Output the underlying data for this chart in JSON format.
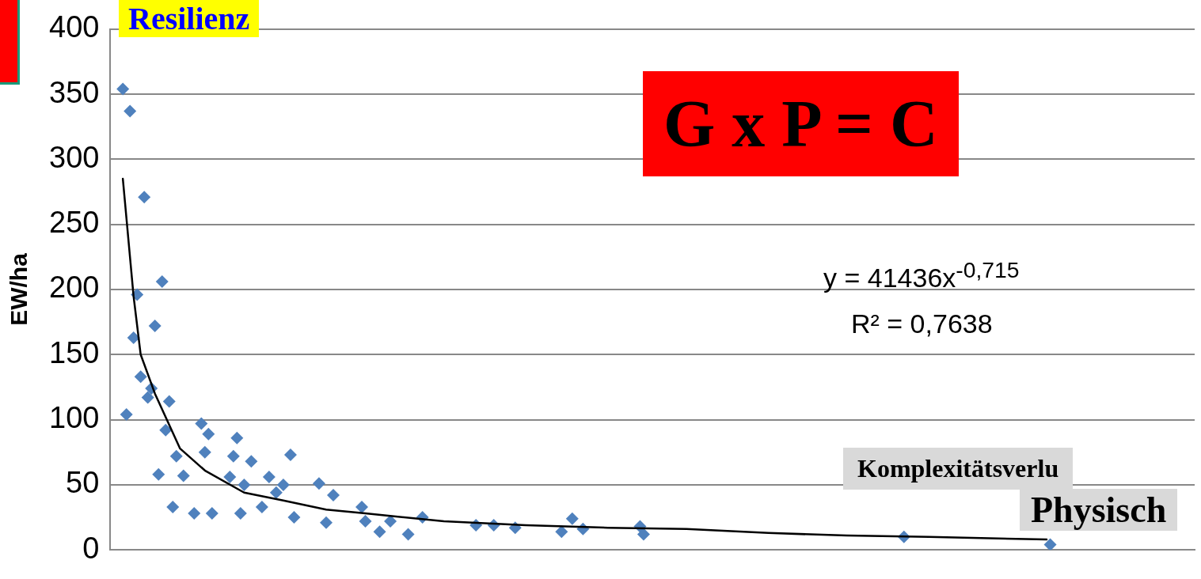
{
  "chart_data": {
    "type": "scatter",
    "ylabel": "EW/ha",
    "categories": [
      null,
      null,
      null,
      null,
      null,
      null,
      null,
      null,
      null,
      null,
      null,
      null,
      null,
      null,
      null,
      null,
      null,
      null,
      null,
      null,
      null,
      null,
      null,
      null,
      null,
      null,
      null,
      null,
      null,
      null,
      null,
      null,
      null,
      null,
      null,
      null,
      null,
      null,
      null,
      null,
      null,
      null,
      null,
      null,
      null,
      null,
      null,
      null,
      null,
      null,
      null,
      null,
      null,
      null,
      null,
      null,
      null,
      null,
      null,
      null,
      null,
      null,
      null,
      null,
      null,
      null,
      null,
      null,
      null,
      null,
      null,
      null,
      null,
      null,
      null,
      null,
      null,
      null,
      null,
      null,
      null,
      null,
      null,
      null,
      null,
      null,
      null,
      null,
      null,
      null,
      null,
      null,
      null,
      null,
      null,
      null,
      null,
      null,
      null,
      null,
      null,
      null,
      null,
      null,
      null,
      null,
      null,
      null,
      null,
      null,
      null,
      null,
      null,
      null,
      null,
      null,
      null,
      null,
      null,
      null,
      null,
      null,
      null,
      null,
      null,
      null,
      null,
      null,
      null,
      null,
      null,
      null,
      null,
      null,
      null,
      null,
      null,
      null,
      null,
      null,
      null,
      null,
      null,
      null,
      null,
      null,
      null,
      null,
      null,
      null,
      null,
      null,
      null,
      null,
      null,
      null,
      null,
      null,
      null,
      null,
      null,
      null,
      null,
      null,
      null,
      null,
      null,
      null,
      null,
      null,
      null,
      null,
      null,
      null,
      null,
      null,
      null,
      null,
      null,
      null,
      null,
      null,
      null,
      null,
      null,
      null,
      null,
      null,
      null,
      null,
      null,
      null,
      null,
      null,
      null,
      null,
      null,
      null,
      null,
      null,
      null,
      null,
      null,
      null,
      null,
      null,
      null,
      null,
      null,
      null,
      null,
      null,
      null,
      null,
      null,
      null,
      null,
      null,
      null,
      null,
      null,
      null,
      null,
      null,
      null,
      null,
      null,
      null,
      null,
      null,
      null,
      null,
      null,
      null,
      null,
      null,
      null,
      null,
      null,
      null,
      null,
      null,
      null,
      null,
      null,
      null,
      null,
      null,
      null,
      null,
      null,
      null,
      null,
      null,
      null,
      null,
      null,
      null,
      null,
      null,
      null,
      null,
      null,
      null,
      null,
      null,
      null,
      null,
      null,
      null,
      null,
      null,
      null,
      null,
      null,
      null,
      null,
      null,
      null,
      null,
      null,
      null,
      null,
      null,
      null,
      null,
      null,
      null,
      null,
      null,
      null,
      null,
      null,
      null,
      null,
      null,
      null,
      null,
      null,
      null,
      null,
      null,
      null,
      null
    ],
    "ylim": [
      0,
      400
    ],
    "yticks": [
      0,
      50,
      100,
      150,
      200,
      250,
      300,
      350,
      400
    ],
    "tick_labels": "y",
    "grid": "y",
    "legend": false,
    "marker": "diamond",
    "annotations": [
      "Resilienz",
      "G x P = C",
      "y = 41436x$^{-0,715}$",
      "R² = 0,7638",
      "Komplexitätsverlu",
      "Physisch"
    ],
    "series": [
      {
        "color": "#4f81bd",
        "values": [
          null,
          null,
          null,
          354,
          104,
          337,
          163,
          196,
          133,
          271,
          117,
          124,
          172,
          58,
          206,
          92,
          114,
          33,
          72,
          null,
          57,
          null,
          null,
          28,
          null,
          97,
          75,
          89,
          28,
          null,
          null,
          null,
          null,
          56,
          72,
          86,
          28,
          50,
          null,
          68,
          null,
          null,
          33,
          null,
          56,
          null,
          44,
          null,
          50,
          null,
          73,
          25,
          null,
          null,
          null,
          null,
          null,
          null,
          51,
          null,
          21,
          null,
          42,
          null,
          null,
          null,
          null,
          null,
          null,
          null,
          33,
          22,
          null,
          null,
          null,
          14,
          null,
          null,
          22,
          null,
          null,
          null,
          null,
          12,
          null,
          null,
          null,
          25,
          null,
          null,
          null,
          null,
          null,
          null,
          null,
          null,
          null,
          null,
          null,
          null,
          null,
          null,
          19,
          null,
          null,
          null,
          null,
          19,
          null,
          null,
          null,
          null,
          null,
          17,
          null,
          null,
          null,
          null,
          null,
          null,
          null,
          null,
          null,
          null,
          null,
          null,
          14,
          null,
          null,
          24,
          null,
          null,
          16,
          null,
          null,
          null,
          null,
          null,
          null,
          null,
          null,
          null,
          null,
          null,
          null,
          null,
          null,
          null,
          18,
          12,
          null,
          null,
          null,
          null,
          null,
          null,
          null,
          null,
          null,
          null,
          null,
          null,
          null,
          null,
          null,
          null,
          null,
          null,
          null,
          null,
          null,
          null,
          null,
          null,
          null,
          null,
          null,
          null,
          null,
          null,
          null,
          null,
          null,
          null,
          null,
          null,
          null,
          null,
          null,
          null,
          null,
          null,
          null,
          null,
          null,
          null,
          null,
          null,
          null,
          null,
          null,
          null,
          null,
          null,
          null,
          null,
          null,
          null,
          null,
          null,
          null,
          null,
          null,
          null,
          null,
          null,
          null,
          null,
          null,
          null,
          null,
          null,
          10,
          null,
          null,
          null,
          null,
          null,
          null,
          null,
          null,
          null,
          null,
          null,
          null,
          null,
          null,
          null,
          null,
          null,
          null,
          null,
          null,
          null,
          null,
          null,
          null,
          null,
          null,
          null,
          null,
          null,
          null,
          null,
          null,
          null,
          null,
          null,
          null,
          null,
          null,
          null,
          null,
          4,
          null,
          null,
          null,
          null,
          null,
          null,
          null,
          null,
          null,
          null,
          null,
          null,
          null,
          null,
          null,
          null,
          null,
          null,
          null,
          null,
          null,
          null,
          null,
          null,
          null,
          null,
          null,
          null,
          null,
          null,
          null,
          null,
          null,
          null,
          null,
          null,
          null,
          null,
          null,
          null
        ]
      },
      {
        "type": "line",
        "color": "#000000",
        "marker": "none",
        "line_style": "solid",
        "values": [
          null,
          null,
          null,
          285,
          null,
          null,
          195,
          null,
          150,
          null,
          null,
          null,
          120,
          null,
          null,
          null,
          null,
          null,
          null,
          78,
          null,
          null,
          null,
          null,
          null,
          null,
          61,
          null,
          null,
          null,
          null,
          null,
          null,
          null,
          null,
          null,
          null,
          44,
          null,
          null,
          null,
          null,
          null,
          null,
          null,
          null,
          null,
          null,
          38,
          null,
          null,
          null,
          null,
          null,
          null,
          null,
          null,
          null,
          null,
          null,
          31,
          null,
          null,
          null,
          null,
          null,
          null,
          null,
          null,
          null,
          null,
          28,
          null,
          null,
          null,
          null,
          null,
          null,
          null,
          null,
          null,
          null,
          null,
          null,
          null,
          null,
          null,
          null,
          null,
          null,
          null,
          null,
          null,
          22,
          null,
          null,
          null,
          null,
          null,
          null,
          null,
          null,
          null,
          null,
          null,
          null,
          null,
          null,
          null,
          null,
          null,
          null,
          null,
          null,
          null,
          null,
          19,
          null,
          null,
          null,
          null,
          null,
          null,
          null,
          null,
          null,
          null,
          null,
          null,
          null,
          null,
          null,
          null,
          null,
          null,
          null,
          null,
          null,
          null,
          17,
          null,
          null,
          null,
          null,
          null,
          null,
          null,
          null,
          null,
          null,
          null,
          null,
          null,
          null,
          null,
          null,
          null,
          null,
          null,
          null,
          null,
          16,
          null,
          null,
          null,
          null,
          null,
          null,
          null,
          null,
          null,
          null,
          null,
          null,
          null,
          null,
          null,
          null,
          null,
          null,
          null,
          null,
          null,
          null,
          13,
          null,
          null,
          null,
          null,
          null,
          null,
          null,
          null,
          null,
          null,
          null,
          null,
          null,
          null,
          null,
          null,
          null,
          null,
          null,
          null,
          null,
          11,
          null,
          null,
          null,
          null,
          null,
          null,
          null,
          null,
          null,
          null,
          null,
          null,
          null,
          null,
          null,
          null,
          null,
          null,
          null,
          null,
          null,
          null,
          10,
          null,
          null,
          null,
          null,
          null,
          null,
          null,
          null,
          null,
          null,
          null,
          null,
          null,
          null,
          null,
          null,
          null,
          null,
          null,
          null,
          null,
          null,
          null,
          null,
          null,
          null,
          null,
          null,
          null,
          null,
          null,
          null,
          8,
          null,
          null,
          null,
          null,
          null,
          null,
          null,
          null,
          null,
          null,
          null,
          null,
          null,
          null,
          null,
          null,
          null,
          null,
          null,
          null,
          null,
          null,
          null,
          null,
          null,
          null,
          null,
          null,
          null,
          null,
          null,
          null,
          null,
          null,
          null,
          null,
          null,
          null,
          null,
          null,
          null
        ]
      }
    ]
  }
}
